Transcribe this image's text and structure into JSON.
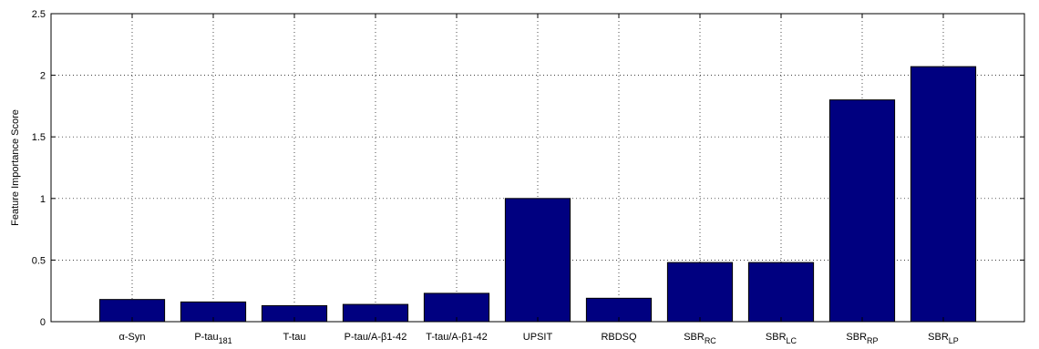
{
  "chart_data": {
    "type": "bar",
    "ylabel": "Feature Importance Score",
    "ylim": [
      0,
      2.5
    ],
    "yticks": [
      0,
      0.5,
      1,
      1.5,
      2,
      2.5
    ],
    "ytick_labels": [
      "0",
      "0.5",
      "1",
      "1.5",
      "2",
      "2.5"
    ],
    "grid": true,
    "bar_color": "#000080",
    "categories": [
      {
        "main": "α-Syn",
        "sub": ""
      },
      {
        "main": "P-tau",
        "sub": "181"
      },
      {
        "main": "T-tau",
        "sub": ""
      },
      {
        "main": "P-tau/A-β1-42",
        "sub": ""
      },
      {
        "main": "T-tau/A-β1-42",
        "sub": ""
      },
      {
        "main": "UPSIT",
        "sub": ""
      },
      {
        "main": "RBDSQ",
        "sub": ""
      },
      {
        "main": "SBR",
        "sub": "RC"
      },
      {
        "main": "SBR",
        "sub": "LC"
      },
      {
        "main": "SBR",
        "sub": "RP"
      },
      {
        "main": "SBR",
        "sub": "LP"
      }
    ],
    "values": [
      0.18,
      0.16,
      0.13,
      0.14,
      0.23,
      1.0,
      0.19,
      0.48,
      0.48,
      1.8,
      2.07
    ]
  }
}
